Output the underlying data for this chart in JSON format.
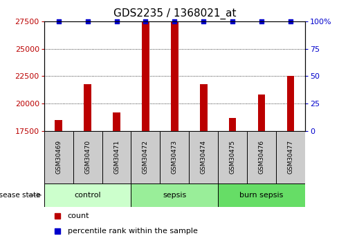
{
  "title": "GDS2235 / 1368021_at",
  "samples": [
    "GSM30469",
    "GSM30470",
    "GSM30471",
    "GSM30472",
    "GSM30473",
    "GSM30474",
    "GSM30475",
    "GSM30476",
    "GSM30477"
  ],
  "counts": [
    18500,
    21800,
    19200,
    27500,
    27500,
    21800,
    18700,
    20800,
    22500
  ],
  "percentiles": [
    100,
    100,
    100,
    100,
    100,
    100,
    100,
    100,
    100
  ],
  "groups": [
    {
      "label": "control",
      "indices": [
        0,
        1,
        2
      ],
      "color": "#bbffbb"
    },
    {
      "label": "sepsis",
      "indices": [
        3,
        4,
        5
      ],
      "color": "#88ee88"
    },
    {
      "label": "burn sepsis",
      "indices": [
        6,
        7,
        8
      ],
      "color": "#55dd55"
    }
  ],
  "ylim_left": [
    17500,
    27500
  ],
  "ylim_right": [
    0,
    100
  ],
  "yticks_left": [
    17500,
    20000,
    22500,
    25000,
    27500
  ],
  "yticks_right": [
    0,
    25,
    50,
    75,
    100
  ],
  "bar_color": "#bb0000",
  "dot_color": "#0000cc",
  "grid_color": "#000000",
  "label_count": "count",
  "label_percentile": "percentile rank within the sample",
  "disease_state_label": "disease state",
  "sample_box_color": "#cccccc",
  "title_fontsize": 11,
  "tick_fontsize": 8,
  "bar_width": 0.25
}
